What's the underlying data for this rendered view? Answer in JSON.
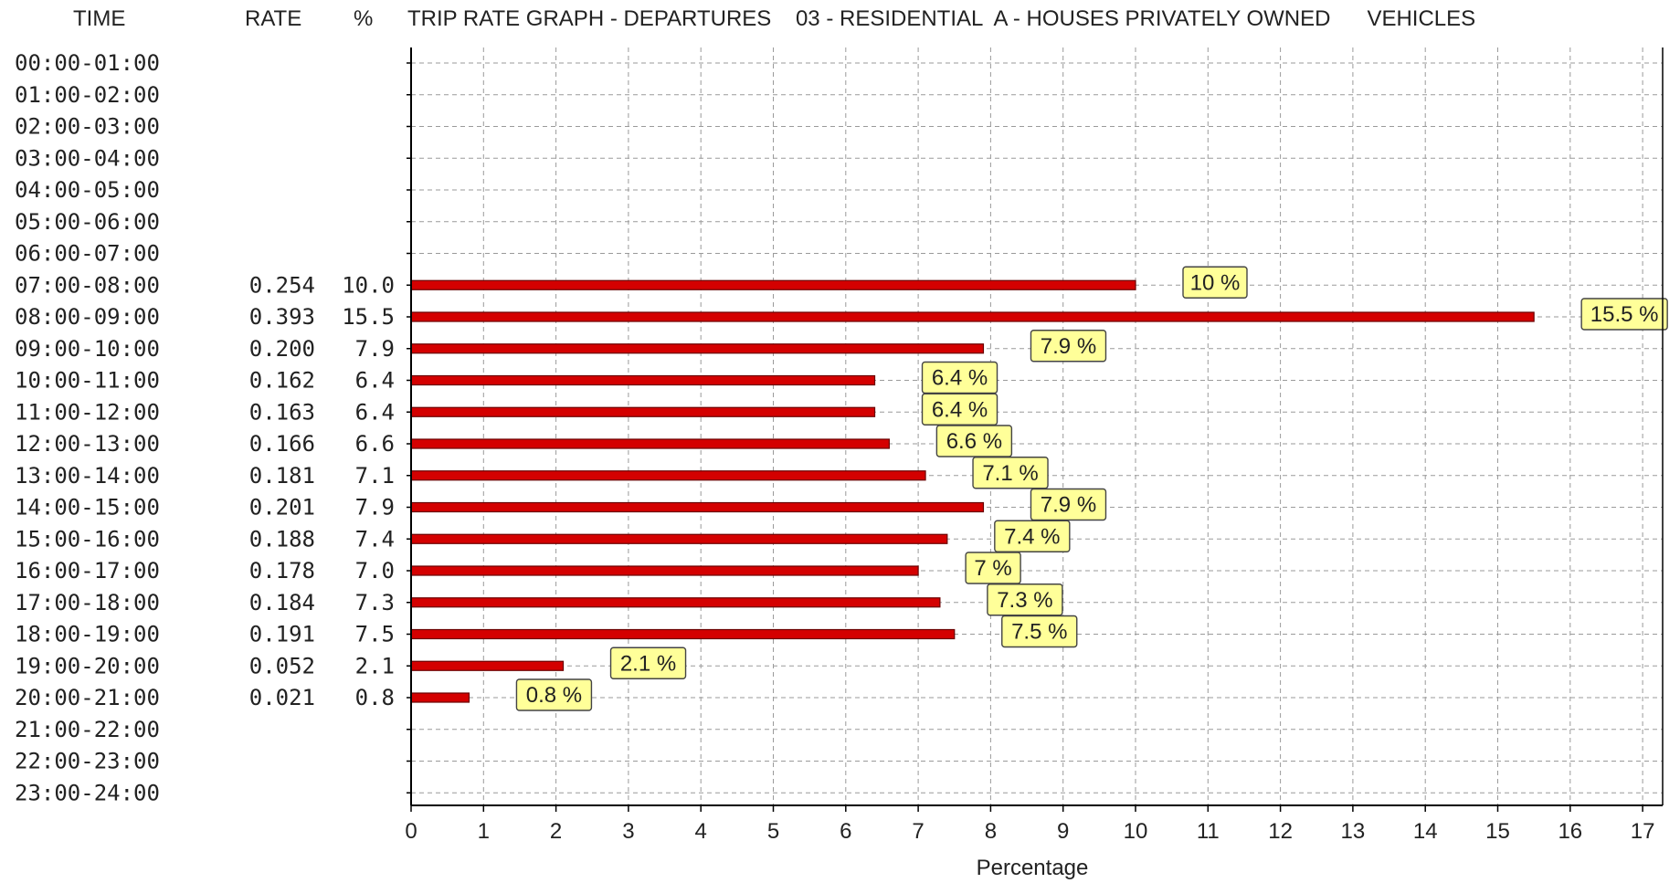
{
  "headers": {
    "time": "TIME",
    "rate": "RATE",
    "percent": "%",
    "title": "TRIP RATE GRAPH - DEPARTURES    03 - RESIDENTIAL  A - HOUSES PRIVATELY OWNED      VEHICLES"
  },
  "chart_data": {
    "type": "bar",
    "orientation": "horizontal",
    "title": "TRIP RATE GRAPH - DEPARTURES    03 - RESIDENTIAL  A - HOUSES PRIVATELY OWNED      VEHICLES",
    "xlabel": "Percentage",
    "ylabel": "",
    "xlim": [
      0,
      17
    ],
    "xticks": [
      "0",
      "1",
      "2",
      "3",
      "4",
      "5",
      "6",
      "7",
      "8",
      "9",
      "10",
      "11",
      "12",
      "13",
      "14",
      "15",
      "16",
      "17"
    ],
    "grid": true,
    "bar_color": "#d40000",
    "label_box_color": "#ffff99",
    "rows": [
      {
        "time": "00:00-01:00",
        "rate": "",
        "percent": "",
        "value": null,
        "label": ""
      },
      {
        "time": "01:00-02:00",
        "rate": "",
        "percent": "",
        "value": null,
        "label": ""
      },
      {
        "time": "02:00-03:00",
        "rate": "",
        "percent": "",
        "value": null,
        "label": ""
      },
      {
        "time": "03:00-04:00",
        "rate": "",
        "percent": "",
        "value": null,
        "label": ""
      },
      {
        "time": "04:00-05:00",
        "rate": "",
        "percent": "",
        "value": null,
        "label": ""
      },
      {
        "time": "05:00-06:00",
        "rate": "",
        "percent": "",
        "value": null,
        "label": ""
      },
      {
        "time": "06:00-07:00",
        "rate": "",
        "percent": "",
        "value": null,
        "label": ""
      },
      {
        "time": "07:00-08:00",
        "rate": "0.254",
        "percent": "10.0",
        "value": 10.0,
        "label": "10 %"
      },
      {
        "time": "08:00-09:00",
        "rate": "0.393",
        "percent": "15.5",
        "value": 15.5,
        "label": "15.5 %"
      },
      {
        "time": "09:00-10:00",
        "rate": "0.200",
        "percent": "7.9",
        "value": 7.9,
        "label": "7.9 %"
      },
      {
        "time": "10:00-11:00",
        "rate": "0.162",
        "percent": "6.4",
        "value": 6.4,
        "label": "6.4 %"
      },
      {
        "time": "11:00-12:00",
        "rate": "0.163",
        "percent": "6.4",
        "value": 6.4,
        "label": "6.4 %"
      },
      {
        "time": "12:00-13:00",
        "rate": "0.166",
        "percent": "6.6",
        "value": 6.6,
        "label": "6.6 %"
      },
      {
        "time": "13:00-14:00",
        "rate": "0.181",
        "percent": "7.1",
        "value": 7.1,
        "label": "7.1 %"
      },
      {
        "time": "14:00-15:00",
        "rate": "0.201",
        "percent": "7.9",
        "value": 7.9,
        "label": "7.9 %"
      },
      {
        "time": "15:00-16:00",
        "rate": "0.188",
        "percent": "7.4",
        "value": 7.4,
        "label": "7.4 %"
      },
      {
        "time": "16:00-17:00",
        "rate": "0.178",
        "percent": "7.0",
        "value": 7.0,
        "label": "7 %"
      },
      {
        "time": "17:00-18:00",
        "rate": "0.184",
        "percent": "7.3",
        "value": 7.3,
        "label": "7.3 %"
      },
      {
        "time": "18:00-19:00",
        "rate": "0.191",
        "percent": "7.5",
        "value": 7.5,
        "label": "7.5 %"
      },
      {
        "time": "19:00-20:00",
        "rate": "0.052",
        "percent": "2.1",
        "value": 2.1,
        "label": "2.1 %"
      },
      {
        "time": "20:00-21:00",
        "rate": "0.021",
        "percent": "0.8",
        "value": 0.8,
        "label": "0.8 %"
      },
      {
        "time": "21:00-22:00",
        "rate": "",
        "percent": "",
        "value": null,
        "label": ""
      },
      {
        "time": "22:00-23:00",
        "rate": "",
        "percent": "",
        "value": null,
        "label": ""
      },
      {
        "time": "23:00-24:00",
        "rate": "",
        "percent": "",
        "value": null,
        "label": ""
      }
    ]
  }
}
